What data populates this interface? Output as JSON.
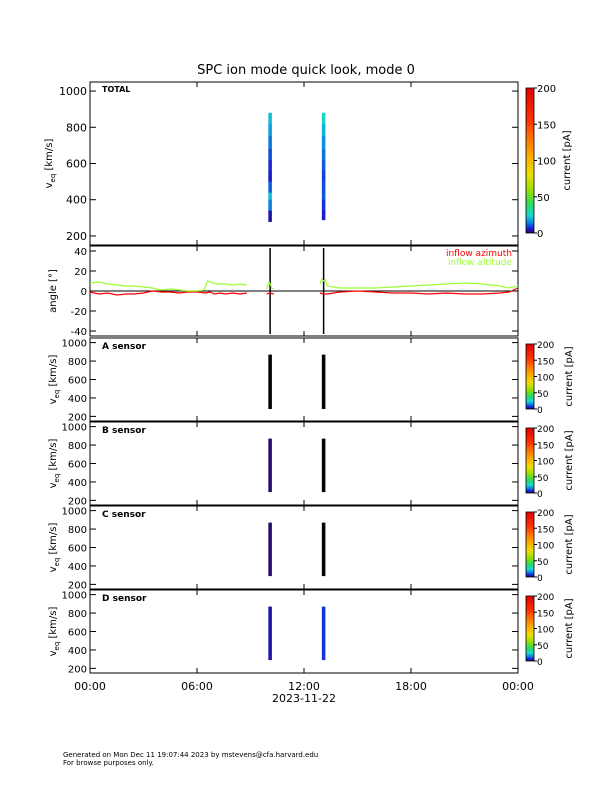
{
  "title": "SPC ion mode quick look, mode 0",
  "x_axis": {
    "ticks": [
      "00:00",
      "06:00",
      "12:00",
      "18:00",
      "00:00"
    ],
    "date_label": "2023-11-22"
  },
  "colorbar": {
    "label": "current [pA]",
    "ticks": [
      "0",
      "50",
      "100",
      "150",
      "200"
    ]
  },
  "footer": {
    "line1": "Generated on Mon Dec 11 19:07:44 2023 by mstevens@cfa.harvard.edu",
    "line2": "For browse purposes only."
  },
  "chart_data": [
    {
      "type": "heatmap",
      "panel": "TOTAL",
      "label": "TOTAL",
      "ylabel": "v",
      "ylabel_sub": "eq",
      "ylabel_unit": " [km/s]",
      "ylim": [
        150,
        1050
      ],
      "yticks": [
        200,
        400,
        600,
        800,
        1000
      ],
      "xlim_hours": [
        0,
        24
      ],
      "zlim_pA": [
        0,
        200
      ],
      "blocks": [
        {
          "t_start": 10.0,
          "t_end": 10.2,
          "v_min": 280,
          "v_max": 880,
          "profile": [
            {
              "v": 880,
              "pA": 22
            },
            {
              "v": 820,
              "pA": 20
            },
            {
              "v": 750,
              "pA": 15
            },
            {
              "v": 680,
              "pA": 12
            },
            {
              "v": 620,
              "pA": 8
            },
            {
              "v": 560,
              "pA": 6
            },
            {
              "v": 500,
              "pA": 5
            },
            {
              "v": 440,
              "pA": 18
            },
            {
              "v": 400,
              "pA": 24
            },
            {
              "v": 340,
              "pA": 5
            },
            {
              "v": 280,
              "pA": 3
            }
          ]
        },
        {
          "t_start": 13.0,
          "t_end": 13.2,
          "v_min": 290,
          "v_max": 880,
          "profile": [
            {
              "v": 880,
              "pA": 28
            },
            {
              "v": 820,
              "pA": 22
            },
            {
              "v": 750,
              "pA": 18
            },
            {
              "v": 680,
              "pA": 14
            },
            {
              "v": 620,
              "pA": 12
            },
            {
              "v": 560,
              "pA": 10
            },
            {
              "v": 500,
              "pA": 8
            },
            {
              "v": 440,
              "pA": 12
            },
            {
              "v": 400,
              "pA": 10
            },
            {
              "v": 340,
              "pA": 6
            },
            {
              "v": 290,
              "pA": 5
            }
          ]
        }
      ]
    },
    {
      "type": "line",
      "panel": "angle",
      "ylabel": "angle [°]",
      "ylim": [
        -45,
        45
      ],
      "yticks": [
        -40,
        -20,
        0,
        20,
        40
      ],
      "xlim_hours": [
        0,
        24
      ],
      "series": [
        {
          "name": "inflow azimuth",
          "color": "#ff0000",
          "segments": [
            [
              [
                0.0,
                -1
              ],
              [
                0.5,
                -3
              ],
              [
                1.0,
                -2
              ],
              [
                1.5,
                -4
              ],
              [
                2.0,
                -3
              ],
              [
                2.5,
                -3
              ],
              [
                3.0,
                -2
              ],
              [
                3.5,
                0
              ],
              [
                4.0,
                -1
              ],
              [
                4.5,
                -1
              ],
              [
                5.0,
                -2
              ],
              [
                5.5,
                -1
              ],
              [
                6.0,
                -1
              ],
              [
                6.5,
                -2
              ],
              [
                6.7,
                -1
              ],
              [
                7.0,
                -3
              ],
              [
                7.3,
                -2
              ],
              [
                7.6,
                -3
              ],
              [
                8.0,
                -2
              ],
              [
                8.4,
                -3
              ],
              [
                8.8,
                -2
              ]
            ],
            [
              [
                9.9,
                -3
              ],
              [
                10.1,
                -2
              ],
              [
                10.3,
                -3
              ]
            ],
            [
              [
                12.9,
                -2
              ],
              [
                13.1,
                -3
              ],
              [
                13.3,
                -3
              ],
              [
                14.0,
                -1
              ],
              [
                15.0,
                0
              ],
              [
                16.0,
                -1
              ],
              [
                17.0,
                -2
              ],
              [
                18.0,
                -2
              ],
              [
                19.0,
                -3
              ],
              [
                20.0,
                -2
              ],
              [
                21.0,
                -3
              ],
              [
                22.0,
                -3
              ],
              [
                23.0,
                -2
              ],
              [
                23.5,
                -1
              ],
              [
                24.0,
                3
              ]
            ]
          ]
        },
        {
          "name": "inflow altitude",
          "color": "#99ff33",
          "segments": [
            [
              [
                0.0,
                8
              ],
              [
                0.5,
                9
              ],
              [
                1.0,
                7
              ],
              [
                1.5,
                6
              ],
              [
                2.0,
                5
              ],
              [
                2.5,
                5
              ],
              [
                3.0,
                4
              ],
              [
                3.5,
                3
              ],
              [
                4.0,
                1
              ],
              [
                4.5,
                2
              ],
              [
                5.0,
                1
              ],
              [
                5.5,
                0
              ],
              [
                6.0,
                0
              ],
              [
                6.4,
                1
              ],
              [
                6.6,
                10
              ],
              [
                6.9,
                8
              ],
              [
                7.2,
                7
              ],
              [
                7.6,
                7
              ],
              [
                8.0,
                6
              ],
              [
                8.4,
                7
              ],
              [
                8.8,
                6
              ]
            ],
            [
              [
                9.9,
                2
              ],
              [
                10.05,
                9
              ],
              [
                10.2,
                3
              ],
              [
                10.3,
                2
              ]
            ],
            [
              [
                12.9,
                7
              ],
              [
                13.0,
                12
              ],
              [
                13.1,
                10
              ],
              [
                13.2,
                11
              ],
              [
                13.3,
                5
              ],
              [
                14.0,
                3
              ],
              [
                15.0,
                3
              ],
              [
                16.0,
                3
              ],
              [
                17.0,
                4
              ],
              [
                18.0,
                5
              ],
              [
                19.0,
                6
              ],
              [
                20.0,
                7
              ],
              [
                21.0,
                8
              ],
              [
                22.0,
                7
              ],
              [
                23.0,
                5
              ],
              [
                23.5,
                3
              ],
              [
                24.0,
                5
              ]
            ]
          ]
        }
      ]
    },
    {
      "type": "heatmap",
      "panel": "A",
      "label": "A sensor",
      "ylabel": "v",
      "ylabel_sub": "eq",
      "ylabel_unit": " [km/s]",
      "ylim": [
        150,
        1050
      ],
      "yticks": [
        200,
        400,
        600,
        800,
        1000
      ],
      "zlim_pA": [
        0,
        200
      ],
      "blocks": [
        {
          "t_start": 10.0,
          "t_end": 10.2,
          "v_min": 280,
          "v_max": 870,
          "dominant_pA": 0
        },
        {
          "t_start": 13.0,
          "t_end": 13.2,
          "v_min": 280,
          "v_max": 870,
          "dominant_pA": 0
        }
      ]
    },
    {
      "type": "heatmap",
      "panel": "B",
      "label": "B sensor",
      "ylabel": "v",
      "ylabel_sub": "eq",
      "ylabel_unit": " [km/s]",
      "ylim": [
        150,
        1050
      ],
      "yticks": [
        200,
        400,
        600,
        800,
        1000
      ],
      "zlim_pA": [
        0,
        200
      ],
      "blocks": [
        {
          "t_start": 10.0,
          "t_end": 10.2,
          "v_min": 290,
          "v_max": 870,
          "dominant_pA": 1
        },
        {
          "t_start": 13.0,
          "t_end": 13.2,
          "v_min": 290,
          "v_max": 870,
          "dominant_pA": 0
        }
      ]
    },
    {
      "type": "heatmap",
      "panel": "C",
      "label": "C sensor",
      "ylabel": "v",
      "ylabel_sub": "eq",
      "ylabel_unit": " [km/s]",
      "ylim": [
        150,
        1050
      ],
      "yticks": [
        200,
        400,
        600,
        800,
        1000
      ],
      "zlim_pA": [
        0,
        200
      ],
      "blocks": [
        {
          "t_start": 10.0,
          "t_end": 10.2,
          "v_min": 290,
          "v_max": 870,
          "dominant_pA": 1
        },
        {
          "t_start": 13.0,
          "t_end": 13.2,
          "v_min": 290,
          "v_max": 870,
          "dominant_pA": 0
        }
      ]
    },
    {
      "type": "heatmap",
      "panel": "D",
      "label": "D sensor",
      "ylabel": "v",
      "ylabel_sub": "eq",
      "ylabel_unit": " [km/s]",
      "ylim": [
        150,
        1050
      ],
      "yticks": [
        200,
        400,
        600,
        800,
        1000
      ],
      "zlim_pA": [
        0,
        200
      ],
      "blocks": [
        {
          "t_start": 10.0,
          "t_end": 10.2,
          "v_min": 290,
          "v_max": 870,
          "dominant_pA": 4
        },
        {
          "t_start": 13.0,
          "t_end": 13.2,
          "v_min": 290,
          "v_max": 870,
          "dominant_pA": 8
        }
      ]
    }
  ]
}
